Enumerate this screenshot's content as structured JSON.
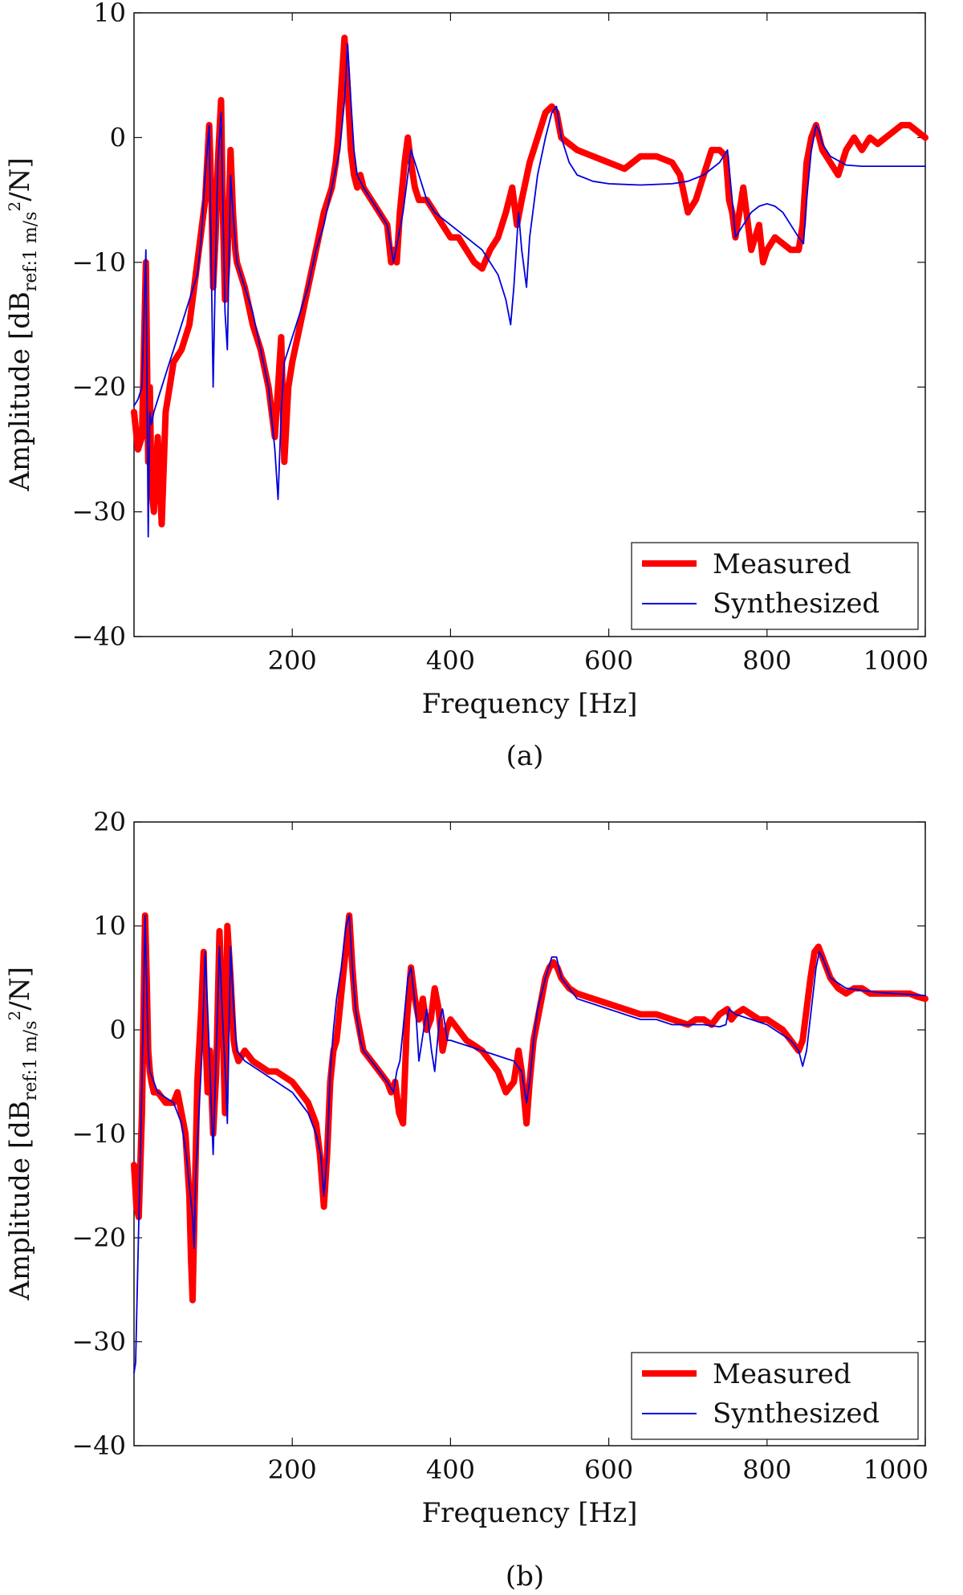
{
  "figure": {
    "captions": [
      "(a)",
      "(b)"
    ]
  },
  "chart_data": [
    {
      "type": "line",
      "title": "",
      "xlabel": "Frequency [Hz]",
      "ylabel": {
        "prefix": "Amplitude [dB",
        "subscript": "ref:1 m/s",
        "superscript": "2",
        "suffix": "/N]"
      },
      "xlim": [
        0,
        1000
      ],
      "ylim": [
        -40,
        10
      ],
      "xticks": [
        200,
        400,
        600,
        800,
        1000
      ],
      "yticks": [
        -40,
        -30,
        -20,
        -10,
        0,
        10
      ],
      "xtick_labels": [
        "200",
        "400",
        "600",
        "800",
        "1000"
      ],
      "ytick_labels": [
        "−40",
        "−30",
        "−20",
        "−10",
        "0",
        "10"
      ],
      "grid": false,
      "legend": {
        "placement": "bottom-right",
        "entries": [
          "Measured",
          "Synthesized"
        ]
      },
      "colors": {
        "measured": "#ff0000",
        "synthesized": "#0000dd"
      },
      "series": [
        {
          "name": "Measured",
          "x": [
            0,
            5,
            10,
            15,
            18,
            20,
            22,
            25,
            30,
            35,
            40,
            45,
            50,
            60,
            70,
            80,
            90,
            95,
            98,
            100,
            103,
            106,
            110,
            112,
            115,
            118,
            122,
            125,
            128,
            130,
            140,
            150,
            160,
            170,
            178,
            182,
            186,
            190,
            195,
            200,
            210,
            220,
            230,
            240,
            250,
            255,
            258,
            262,
            266,
            270,
            274,
            278,
            282,
            286,
            290,
            300,
            310,
            320,
            325,
            328,
            332,
            336,
            342,
            346,
            350,
            355,
            360,
            370,
            380,
            390,
            400,
            410,
            420,
            430,
            440,
            450,
            460,
            470,
            478,
            484,
            490,
            500,
            510,
            520,
            528,
            534,
            540,
            550,
            560,
            580,
            600,
            620,
            640,
            660,
            680,
            690,
            700,
            710,
            720,
            730,
            740,
            748,
            752,
            756,
            760,
            770,
            780,
            790,
            795,
            800,
            810,
            820,
            830,
            840,
            845,
            850,
            856,
            862,
            866,
            870,
            880,
            890,
            900,
            910,
            920,
            930,
            940,
            950,
            960,
            970,
            980,
            990,
            1000
          ],
          "values": [
            -22,
            -25,
            -24,
            -10,
            -26,
            -20,
            -28,
            -30,
            -24,
            -31,
            -22,
            -20,
            -18,
            -17,
            -15,
            -10,
            -5,
            1,
            -5,
            -12,
            -8,
            -2,
            3,
            -5,
            -13,
            -10,
            -1,
            -6,
            -9,
            -10,
            -12,
            -15,
            -17,
            -20,
            -24,
            -20,
            -16,
            -26,
            -20,
            -18,
            -15,
            -12,
            -9,
            -6,
            -4,
            -2,
            0,
            4,
            8,
            4,
            -1,
            -3,
            -4,
            -3,
            -4,
            -5,
            -6,
            -7,
            -10,
            -9,
            -10,
            -6,
            -2,
            0,
            -2,
            -4,
            -5,
            -5,
            -6,
            -7,
            -8,
            -8,
            -9,
            -10,
            -10.5,
            -9,
            -8,
            -6,
            -4,
            -7,
            -5,
            -2,
            0,
            2,
            2.5,
            2,
            0,
            -0.5,
            -1,
            -1.5,
            -2,
            -2.5,
            -1.5,
            -1.5,
            -2,
            -3,
            -6,
            -5,
            -3,
            -1,
            -1,
            -1.5,
            -5,
            -6,
            -8,
            -4,
            -9,
            -7,
            -10,
            -9,
            -8,
            -8.5,
            -9,
            -9,
            -7,
            -2,
            0,
            1,
            0,
            -1,
            -2,
            -3,
            -1,
            0,
            -1,
            0,
            -0.5,
            0,
            0.5,
            1,
            1,
            0.5,
            0
          ]
        },
        {
          "name": "Synthesized",
          "x": [
            0,
            5,
            10,
            15,
            18,
            20,
            22,
            25,
            30,
            40,
            50,
            60,
            70,
            80,
            85,
            90,
            95,
            100,
            103,
            106,
            110,
            115,
            118,
            122,
            125,
            130,
            140,
            150,
            160,
            170,
            178,
            182,
            186,
            190,
            200,
            210,
            220,
            230,
            240,
            250,
            260,
            266,
            270,
            274,
            278,
            282,
            290,
            300,
            310,
            320,
            328,
            334,
            340,
            346,
            350,
            360,
            370,
            380,
            390,
            400,
            420,
            440,
            460,
            470,
            476,
            480,
            486,
            490,
            496,
            500,
            510,
            520,
            528,
            534,
            540,
            550,
            560,
            580,
            600,
            640,
            680,
            700,
            720,
            740,
            750,
            756,
            760,
            770,
            780,
            790,
            800,
            810,
            820,
            830,
            840,
            846,
            850,
            856,
            862,
            866,
            870,
            880,
            900,
            920,
            940,
            960,
            980,
            1000
          ],
          "values": [
            -21.5,
            -21,
            -20,
            -9,
            -32,
            -22,
            -23,
            -22,
            -21,
            -19,
            -17,
            -15,
            -13,
            -11,
            -8,
            -3,
            1,
            -20,
            -10,
            -2,
            2,
            -14,
            -17,
            -3,
            -6,
            -10,
            -12,
            -14,
            -17,
            -20,
            -25,
            -29,
            -22,
            -18,
            -16,
            -14,
            -12,
            -9,
            -7,
            -4,
            -1,
            3,
            7.5,
            3,
            -1,
            -3,
            -4,
            -5,
            -6,
            -7,
            -10,
            -8,
            -6,
            -3,
            -1,
            -3,
            -5,
            -6,
            -6.5,
            -7,
            -8,
            -9,
            -11,
            -13,
            -15,
            -12,
            -6,
            -9,
            -12,
            -8,
            -3,
            0,
            2,
            2.5,
            0,
            -2,
            -3,
            -3.5,
            -3.7,
            -3.8,
            -3.7,
            -3.5,
            -3,
            -2,
            -1,
            -5,
            -8,
            -7,
            -6,
            -5.5,
            -5.3,
            -5.5,
            -6,
            -7,
            -8,
            -8.5,
            -5,
            -1,
            1,
            0.5,
            -0.5,
            -1.5,
            -2.2,
            -2.3,
            -2.3,
            -2.3,
            -2.3,
            -2.3
          ]
        }
      ]
    },
    {
      "type": "line",
      "title": "",
      "xlabel": "Frequency [Hz]",
      "ylabel": {
        "prefix": "Amplitude [dB",
        "subscript": "ref:1 m/s",
        "superscript": "2",
        "suffix": "/N]"
      },
      "xlim": [
        0,
        1000
      ],
      "ylim": [
        -40,
        20
      ],
      "xticks": [
        200,
        400,
        600,
        800,
        1000
      ],
      "yticks": [
        -40,
        -30,
        -20,
        -10,
        0,
        10,
        20
      ],
      "xtick_labels": [
        "200",
        "400",
        "600",
        "800",
        "1000"
      ],
      "ytick_labels": [
        "−40",
        "−30",
        "−20",
        "−10",
        "0",
        "10",
        "20"
      ],
      "grid": false,
      "legend": {
        "placement": "bottom-right",
        "entries": [
          "Measured",
          "Synthesized"
        ]
      },
      "colors": {
        "measured": "#ff0000",
        "synthesized": "#0000dd"
      },
      "series": [
        {
          "name": "Measured",
          "x": [
            0,
            3,
            6,
            10,
            14,
            16,
            18,
            20,
            22,
            25,
            30,
            40,
            50,
            55,
            60,
            65,
            70,
            72,
            74,
            76,
            78,
            80,
            85,
            88,
            90,
            93,
            96,
            100,
            104,
            108,
            112,
            115,
            118,
            122,
            126,
            128,
            132,
            140,
            150,
            160,
            170,
            180,
            190,
            200,
            210,
            220,
            230,
            235,
            238,
            240,
            244,
            248,
            252,
            256,
            260,
            264,
            268,
            272,
            276,
            280,
            285,
            290,
            300,
            310,
            320,
            325,
            330,
            335,
            340,
            345,
            350,
            355,
            360,
            365,
            370,
            375,
            380,
            385,
            390,
            395,
            400,
            410,
            420,
            430,
            440,
            450,
            460,
            470,
            480,
            486,
            490,
            496,
            500,
            505,
            510,
            515,
            520,
            525,
            530,
            535,
            540,
            550,
            560,
            580,
            600,
            620,
            640,
            660,
            680,
            700,
            710,
            720,
            730,
            740,
            750,
            755,
            760,
            770,
            780,
            790,
            800,
            810,
            820,
            830,
            840,
            845,
            850,
            855,
            860,
            865,
            870,
            880,
            890,
            900,
            910,
            920,
            930,
            940,
            950,
            960,
            970,
            980,
            990,
            1000
          ],
          "values": [
            -13,
            -17,
            -18,
            -8,
            11,
            5,
            -2,
            -4,
            -5,
            -6,
            -6,
            -7,
            -7,
            -6,
            -8,
            -10,
            -16,
            -22,
            -26,
            -19,
            -12,
            -5,
            2,
            7.5,
            0,
            -6,
            -2,
            -10,
            -4,
            9.5,
            1,
            -8,
            10,
            5,
            -1,
            -2,
            -3,
            -2,
            -3,
            -3.5,
            -4,
            -4,
            -4.5,
            -5,
            -6,
            -7,
            -9,
            -12,
            -15,
            -17,
            -12,
            -5,
            -2,
            -1,
            2,
            5,
            8,
            11,
            6,
            2,
            0,
            -2,
            -3,
            -4,
            -5,
            -6,
            -5,
            -8,
            -9,
            1,
            6,
            3,
            1,
            3,
            0,
            1,
            4,
            2,
            -2,
            0,
            1,
            0,
            -1,
            -1.5,
            -2,
            -3,
            -4,
            -6,
            -5,
            -2,
            -4,
            -9,
            -5,
            -1,
            1,
            3,
            5,
            6,
            6.5,
            6,
            5,
            4,
            3.5,
            3,
            2.5,
            2,
            1.5,
            1.5,
            1,
            0.5,
            1,
            1,
            0.5,
            1.5,
            2,
            1,
            1.5,
            2,
            1.5,
            1,
            1,
            0.5,
            0,
            -1,
            -2,
            -1,
            2,
            5,
            7.5,
            8,
            7,
            5,
            4,
            3.5,
            4,
            4,
            3.5,
            3.5,
            3.5,
            3.5,
            3.5,
            3.5,
            3.2,
            3
          ]
        },
        {
          "name": "Synthesized",
          "x": [
            0,
            2,
            5,
            8,
            10,
            14,
            16,
            18,
            20,
            25,
            30,
            40,
            50,
            60,
            66,
            70,
            74,
            76,
            78,
            82,
            86,
            90,
            93,
            96,
            100,
            104,
            108,
            112,
            116,
            118,
            122,
            126,
            130,
            140,
            150,
            160,
            170,
            180,
            190,
            200,
            210,
            220,
            230,
            236,
            240,
            244,
            248,
            252,
            256,
            262,
            268,
            272,
            276,
            280,
            286,
            290,
            300,
            310,
            320,
            328,
            332,
            336,
            340,
            346,
            350,
            356,
            360,
            366,
            370,
            376,
            380,
            386,
            390,
            396,
            400,
            420,
            440,
            460,
            480,
            490,
            496,
            500,
            505,
            510,
            520,
            528,
            534,
            540,
            550,
            560,
            580,
            600,
            620,
            640,
            660,
            680,
            700,
            720,
            740,
            748,
            752,
            760,
            780,
            800,
            820,
            830,
            840,
            845,
            850,
            856,
            862,
            866,
            870,
            880,
            900,
            920,
            940,
            960,
            980,
            1000
          ],
          "values": [
            -33,
            -32,
            -22,
            -12,
            -5,
            11,
            4,
            -2,
            -4,
            -5,
            -6,
            -6.5,
            -7,
            -9,
            -12,
            -15,
            -18,
            -21,
            -14,
            -8,
            -2,
            7.5,
            2,
            -4,
            -12,
            -2,
            8,
            1,
            -5,
            -9,
            8,
            2,
            -2,
            -3,
            -3.5,
            -4,
            -4.5,
            -5,
            -5.5,
            -6,
            -7,
            -8,
            -10,
            -12,
            -16,
            -12,
            -4,
            0,
            3,
            6,
            10,
            11,
            6,
            2,
            -1,
            -2,
            -3,
            -4,
            -5,
            -6,
            -4,
            -3,
            0,
            5,
            6,
            2,
            -3,
            0,
            2,
            -2,
            -4,
            1,
            2,
            -1,
            -1,
            -1.5,
            -2,
            -2.5,
            -3,
            -4,
            -7,
            -5,
            -1,
            2,
            5,
            7,
            7,
            5,
            4,
            3,
            2.5,
            2,
            1.5,
            1,
            1,
            0.5,
            0.5,
            0.5,
            0.3,
            0.5,
            2,
            1.5,
            1,
            0.5,
            -0.5,
            -1,
            -2,
            -3.5,
            -2,
            2,
            6,
            7.5,
            7,
            5,
            4,
            3.8,
            3.6,
            3.5,
            3.4,
            3.3
          ]
        }
      ]
    }
  ]
}
